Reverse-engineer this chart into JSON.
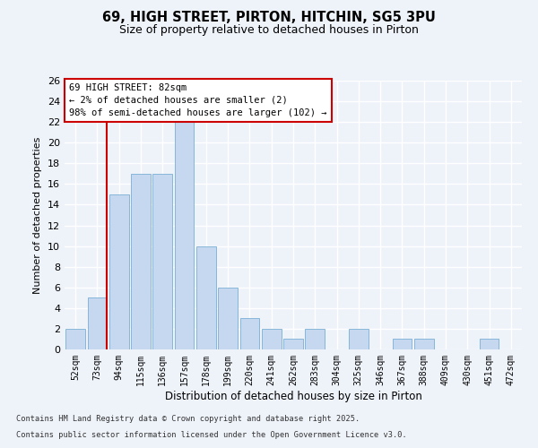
{
  "title": "69, HIGH STREET, PIRTON, HITCHIN, SG5 3PU",
  "subtitle": "Size of property relative to detached houses in Pirton",
  "xlabel": "Distribution of detached houses by size in Pirton",
  "ylabel": "Number of detached properties",
  "categories": [
    "52sqm",
    "73sqm",
    "94sqm",
    "115sqm",
    "136sqm",
    "157sqm",
    "178sqm",
    "199sqm",
    "220sqm",
    "241sqm",
    "262sqm",
    "283sqm",
    "304sqm",
    "325sqm",
    "346sqm",
    "367sqm",
    "388sqm",
    "409sqm",
    "430sqm",
    "451sqm",
    "472sqm"
  ],
  "values": [
    2,
    5,
    15,
    17,
    17,
    22,
    10,
    6,
    3,
    2,
    1,
    2,
    0,
    2,
    0,
    1,
    1,
    0,
    0,
    1,
    0
  ],
  "bar_color": "#c5d8ef",
  "bar_edge_color": "#7aafd4",
  "ylim": [
    0,
    26
  ],
  "yticks": [
    0,
    2,
    4,
    6,
    8,
    10,
    12,
    14,
    16,
    18,
    20,
    22,
    24,
    26
  ],
  "annotation_title": "69 HIGH STREET: 82sqm",
  "annotation_line1": "← 2% of detached houses are smaller (2)",
  "annotation_line2": "98% of semi-detached houses are larger (102) →",
  "footer_line1": "Contains HM Land Registry data © Crown copyright and database right 2025.",
  "footer_line2": "Contains public sector information licensed under the Open Government Licence v3.0.",
  "bg_color": "#eef2f9",
  "grid_color": "#ffffff",
  "annotation_box_color": "#ffffff",
  "annotation_border_color": "#cc0000",
  "property_line_color": "#cc0000"
}
